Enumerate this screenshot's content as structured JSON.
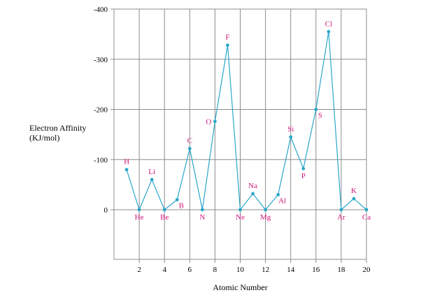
{
  "chart_data": {
    "type": "line",
    "xlabel": "Atomic Number",
    "ylabel_lines": [
      "Electron Affinity",
      "(KJ/mol)"
    ],
    "x_ticks": [
      2,
      4,
      6,
      8,
      10,
      12,
      14,
      16,
      18,
      20
    ],
    "y_ticks": [
      {
        "value": -400,
        "label": "-400"
      },
      {
        "value": -300,
        "label": "-300"
      },
      {
        "value": -200,
        "label": "-200"
      },
      {
        "value": -100,
        "label": "-100"
      },
      {
        "value": 0,
        "label": "0"
      }
    ],
    "xlim": [
      0,
      20
    ],
    "ylim": [
      -400,
      100
    ],
    "y_reversed": true,
    "grid": true,
    "line_color": "#2aa7c9",
    "label_color": "#d4147a",
    "points": [
      {
        "x": 1,
        "y": -80,
        "symbol": "H",
        "pos": "above"
      },
      {
        "x": 2,
        "y": 0,
        "symbol": "He",
        "pos": "below"
      },
      {
        "x": 3,
        "y": -60,
        "symbol": "Li",
        "pos": "above"
      },
      {
        "x": 4,
        "y": 0,
        "symbol": "Be",
        "pos": "below"
      },
      {
        "x": 5,
        "y": -20,
        "symbol": "B",
        "pos": "below-right"
      },
      {
        "x": 6,
        "y": -122,
        "symbol": "C",
        "pos": "above"
      },
      {
        "x": 7,
        "y": 0,
        "symbol": "N",
        "pos": "below"
      },
      {
        "x": 8,
        "y": -176,
        "symbol": "O",
        "pos": "left"
      },
      {
        "x": 9,
        "y": -328,
        "symbol": "F",
        "pos": "above"
      },
      {
        "x": 10,
        "y": 0,
        "symbol": "Ne",
        "pos": "below"
      },
      {
        "x": 11,
        "y": -32,
        "symbol": "Na",
        "pos": "above"
      },
      {
        "x": 12,
        "y": 0,
        "symbol": "Mg",
        "pos": "below"
      },
      {
        "x": 13,
        "y": -30,
        "symbol": "Al",
        "pos": "below-right"
      },
      {
        "x": 14,
        "y": -145,
        "symbol": "Si",
        "pos": "above"
      },
      {
        "x": 15,
        "y": -82,
        "symbol": "P",
        "pos": "below"
      },
      {
        "x": 16,
        "y": -200,
        "symbol": "S",
        "pos": "below-right"
      },
      {
        "x": 17,
        "y": -355,
        "symbol": "Cl",
        "pos": "above"
      },
      {
        "x": 18,
        "y": 0,
        "symbol": "Ar",
        "pos": "below"
      },
      {
        "x": 19,
        "y": -22,
        "symbol": "K",
        "pos": "above"
      },
      {
        "x": 20,
        "y": 0,
        "symbol": "Ca",
        "pos": "below"
      }
    ]
  }
}
